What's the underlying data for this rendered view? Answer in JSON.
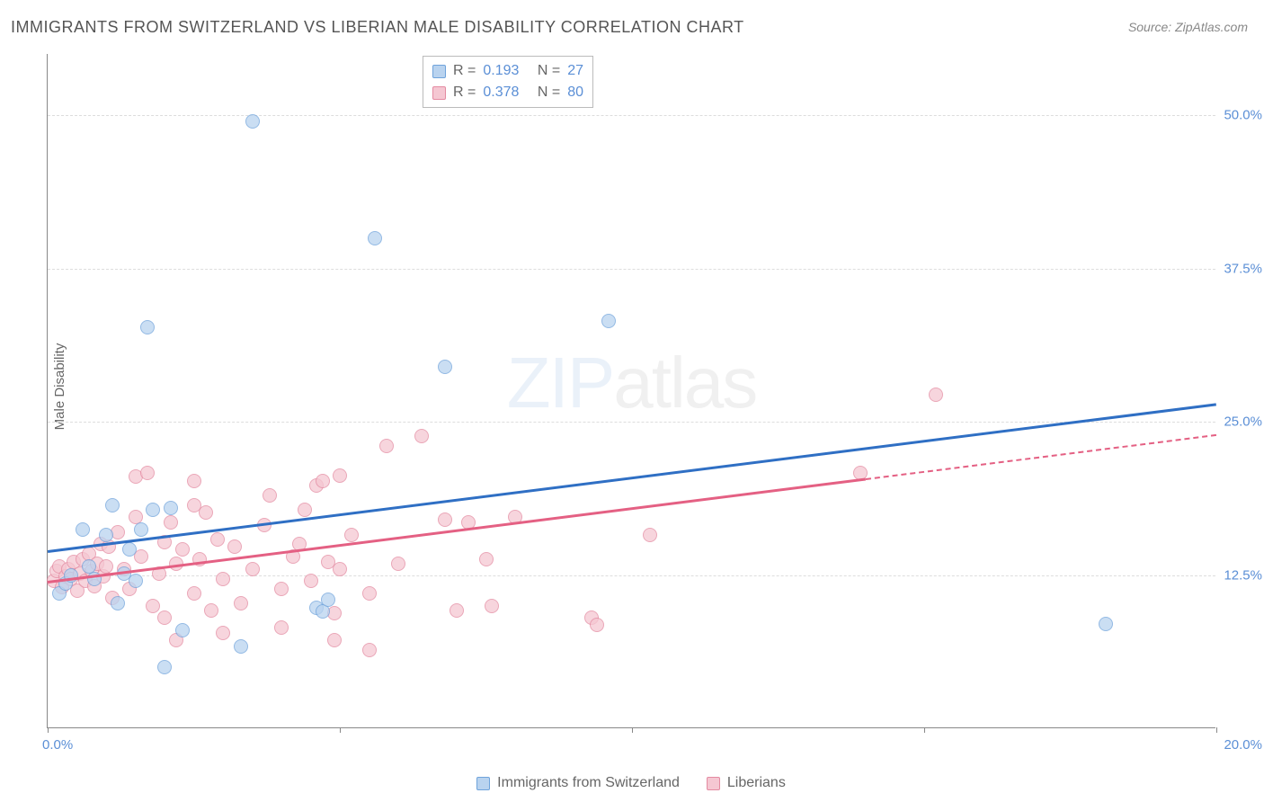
{
  "title": "IMMIGRANTS FROM SWITZERLAND VS LIBERIAN MALE DISABILITY CORRELATION CHART",
  "source_label": "Source: ",
  "source_name": "ZipAtlas.com",
  "y_axis_title": "Male Disability",
  "watermark_zip": "ZIP",
  "watermark_atlas": "atlas",
  "chart": {
    "type": "scatter",
    "xlim": [
      0,
      20
    ],
    "ylim": [
      0,
      55
    ],
    "x_ticks": [
      0,
      5,
      10,
      15,
      20
    ],
    "x_tick_labels": [
      "0.0%",
      "",
      "",
      "",
      "20.0%"
    ],
    "y_gridlines": [
      12.5,
      25.0,
      37.5,
      50.0
    ],
    "y_tick_labels": [
      "12.5%",
      "25.0%",
      "37.5%",
      "50.0%"
    ],
    "background_color": "#ffffff",
    "grid_color": "#dddddd",
    "axis_color": "#888888",
    "tick_label_color": "#5b8fd6",
    "point_radius": 8,
    "series": [
      {
        "name": "Immigrants from Switzerland",
        "color_fill": "#b9d3ef",
        "color_border": "#6fa3db",
        "R": "0.193",
        "N": "27",
        "trend": {
          "x1": 0,
          "y1": 14.5,
          "x2": 20,
          "y2": 26.5,
          "color": "#2f6fc4",
          "dash_from_x": null
        },
        "points": [
          [
            3.5,
            49.5
          ],
          [
            1.7,
            32.7
          ],
          [
            5.6,
            40.0
          ],
          [
            9.6,
            33.2
          ],
          [
            6.8,
            29.5
          ],
          [
            18.1,
            8.5
          ],
          [
            0.2,
            11.0
          ],
          [
            0.3,
            11.8
          ],
          [
            0.6,
            16.2
          ],
          [
            0.7,
            13.2
          ],
          [
            0.8,
            12.2
          ],
          [
            1.2,
            10.2
          ],
          [
            1.4,
            14.6
          ],
          [
            1.6,
            16.2
          ],
          [
            1.8,
            17.8
          ],
          [
            2.0,
            5.0
          ],
          [
            2.1,
            18.0
          ],
          [
            2.3,
            8.0
          ],
          [
            3.3,
            6.7
          ],
          [
            4.6,
            9.8
          ],
          [
            4.7,
            9.5
          ],
          [
            4.8,
            10.5
          ],
          [
            1.0,
            15.8
          ],
          [
            1.3,
            12.6
          ],
          [
            1.5,
            12.0
          ],
          [
            0.4,
            12.5
          ],
          [
            1.1,
            18.2
          ]
        ]
      },
      {
        "name": "Liberians",
        "color_fill": "#f5c7d2",
        "color_border": "#e48aa1",
        "R": "0.378",
        "N": "80",
        "trend": {
          "x1": 0,
          "y1": 12.0,
          "x2": 20,
          "y2": 24.0,
          "color": "#e46083",
          "dash_from_x": 14.0
        },
        "points": [
          [
            0.1,
            12.0
          ],
          [
            0.15,
            12.8
          ],
          [
            0.2,
            13.2
          ],
          [
            0.25,
            11.5
          ],
          [
            0.3,
            12.4
          ],
          [
            0.35,
            13.0
          ],
          [
            0.4,
            12.2
          ],
          [
            0.45,
            13.6
          ],
          [
            0.5,
            11.2
          ],
          [
            0.55,
            12.6
          ],
          [
            0.6,
            13.8
          ],
          [
            0.65,
            12.0
          ],
          [
            0.7,
            14.2
          ],
          [
            0.75,
            12.8
          ],
          [
            0.8,
            11.6
          ],
          [
            0.85,
            13.4
          ],
          [
            0.9,
            15.0
          ],
          [
            0.95,
            12.4
          ],
          [
            1.0,
            13.2
          ],
          [
            1.05,
            14.8
          ],
          [
            1.1,
            10.6
          ],
          [
            1.2,
            16.0
          ],
          [
            1.3,
            13.0
          ],
          [
            1.4,
            11.4
          ],
          [
            1.5,
            17.2
          ],
          [
            1.5,
            20.5
          ],
          [
            1.6,
            14.0
          ],
          [
            1.7,
            20.8
          ],
          [
            1.8,
            10.0
          ],
          [
            1.9,
            12.6
          ],
          [
            2.0,
            15.2
          ],
          [
            2.0,
            9.0
          ],
          [
            2.1,
            16.8
          ],
          [
            2.2,
            13.4
          ],
          [
            2.2,
            7.2
          ],
          [
            2.3,
            14.6
          ],
          [
            2.5,
            18.2
          ],
          [
            2.5,
            11.0
          ],
          [
            2.5,
            20.2
          ],
          [
            2.6,
            13.8
          ],
          [
            2.7,
            17.6
          ],
          [
            2.8,
            9.6
          ],
          [
            2.9,
            15.4
          ],
          [
            3.0,
            12.2
          ],
          [
            3.0,
            7.8
          ],
          [
            3.2,
            14.8
          ],
          [
            3.3,
            10.2
          ],
          [
            3.5,
            13.0
          ],
          [
            3.7,
            16.6
          ],
          [
            3.8,
            19.0
          ],
          [
            4.0,
            11.4
          ],
          [
            4.0,
            8.2
          ],
          [
            4.2,
            14.0
          ],
          [
            4.4,
            17.8
          ],
          [
            4.5,
            12.0
          ],
          [
            4.6,
            19.8
          ],
          [
            4.7,
            20.2
          ],
          [
            4.8,
            13.6
          ],
          [
            4.9,
            9.4
          ],
          [
            4.9,
            7.2
          ],
          [
            5.0,
            20.6
          ],
          [
            5.0,
            13.0
          ],
          [
            5.2,
            15.8
          ],
          [
            5.5,
            11.0
          ],
          [
            5.5,
            6.4
          ],
          [
            5.8,
            23.0
          ],
          [
            6.0,
            13.4
          ],
          [
            6.4,
            23.8
          ],
          [
            6.8,
            17.0
          ],
          [
            7.0,
            9.6
          ],
          [
            7.2,
            16.8
          ],
          [
            7.5,
            13.8
          ],
          [
            7.6,
            10.0
          ],
          [
            8.0,
            17.2
          ],
          [
            9.3,
            9.0
          ],
          [
            9.4,
            8.4
          ],
          [
            10.3,
            15.8
          ],
          [
            13.9,
            20.8
          ],
          [
            15.2,
            27.2
          ],
          [
            4.3,
            15.0
          ]
        ]
      }
    ]
  },
  "legend_top": {
    "R_label": "R  =",
    "N_label": "N  ="
  },
  "legend_bottom": [
    {
      "swatch_fill": "#b9d3ef",
      "swatch_border": "#6fa3db",
      "label": "Immigrants from Switzerland"
    },
    {
      "swatch_fill": "#f5c7d2",
      "swatch_border": "#e48aa1",
      "label": "Liberians"
    }
  ]
}
